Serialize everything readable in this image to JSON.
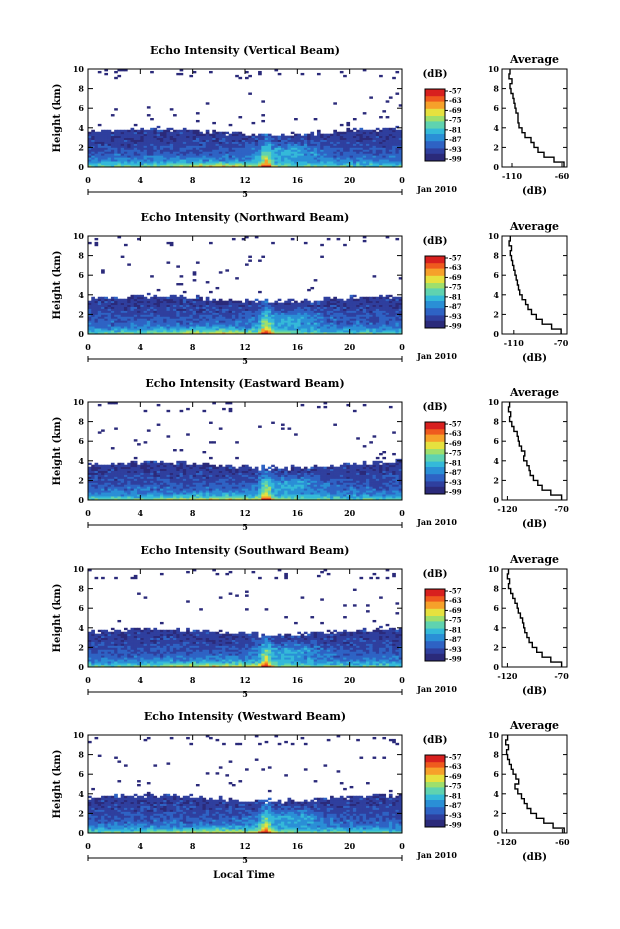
{
  "figure": {
    "x_axis_label": "Local Time",
    "date_label": "Jan 2010",
    "day_label": "5",
    "average_title": "Average",
    "colorbar_unit": "(dB)",
    "average_x_unit": "(dB)",
    "height_axis_label": "Height (km)"
  },
  "chart_data": [
    {
      "type": "heatmap",
      "title": "Echo Intensity (Vertical Beam)",
      "ylabel": "Height (km)",
      "x_ticks": [
        "0",
        "4",
        "8",
        "12",
        "16",
        "20",
        "0"
      ],
      "y_ticks": [
        "0",
        "2",
        "4",
        "6",
        "8",
        "10"
      ],
      "xlim_hours": [
        0,
        24
      ],
      "ylim_km": [
        0,
        10
      ],
      "colorbar": {
        "unit": "(dB)",
        "ticks": [
          "-57",
          "-63",
          "-69",
          "-75",
          "-81",
          "-87",
          "-93",
          "-99"
        ],
        "range": [
          -99,
          -57
        ]
      },
      "average_profile": {
        "title": "Average",
        "xlabel": "(dB)",
        "x_ticks": [
          "-110",
          "-60"
        ],
        "xlim": [
          -120,
          -55
        ],
        "y_ticks": [
          "0",
          "2",
          "4",
          "6",
          "8",
          "10"
        ],
        "height_km": [
          0,
          0.5,
          1,
          1.5,
          2,
          2.5,
          3,
          3.5,
          4,
          4.5,
          5,
          5.5,
          6,
          6.5,
          7,
          7.5,
          8,
          8.5,
          9,
          9.5
        ],
        "avg_db": [
          -58,
          -68,
          -78,
          -84,
          -88,
          -91,
          -97,
          -100,
          -103,
          -104,
          -104,
          -106,
          -107,
          -108,
          -109,
          -111,
          -112,
          -110,
          -113,
          -112
        ]
      }
    },
    {
      "type": "heatmap",
      "title": "Echo Intensity (Northward Beam)",
      "ylabel": "Height (km)",
      "x_ticks": [
        "0",
        "4",
        "8",
        "12",
        "16",
        "20",
        "0"
      ],
      "y_ticks": [
        "0",
        "2",
        "4",
        "6",
        "8",
        "10"
      ],
      "xlim_hours": [
        0,
        24
      ],
      "ylim_km": [
        0,
        10
      ],
      "colorbar": {
        "unit": "(dB)",
        "ticks": [
          "-57",
          "-63",
          "-69",
          "-75",
          "-81",
          "-87",
          "-93",
          "-99"
        ],
        "range": [
          -99,
          -57
        ]
      },
      "average_profile": {
        "title": "Average",
        "xlabel": "(dB)",
        "x_ticks": [
          "-110",
          "-70"
        ],
        "xlim": [
          -120,
          -65
        ],
        "y_ticks": [
          "0",
          "2",
          "4",
          "6",
          "8",
          "10"
        ],
        "height_km": [
          0,
          0.5,
          1,
          1.5,
          2,
          2.5,
          3,
          3.5,
          4,
          4.5,
          5,
          5.5,
          6,
          6.5,
          7,
          7.5,
          8,
          8.5,
          9,
          9.5
        ],
        "avg_db": [
          -70,
          -78,
          -86,
          -91,
          -95,
          -98,
          -100,
          -103,
          -105,
          -106,
          -107,
          -108,
          -109,
          -110,
          -111,
          -112,
          -113,
          -112,
          -114,
          -113
        ]
      }
    },
    {
      "type": "heatmap",
      "title": "Echo Intensity (Eastward Beam)",
      "ylabel": "Height (km)",
      "x_ticks": [
        "0",
        "4",
        "8",
        "12",
        "16",
        "20",
        "0"
      ],
      "y_ticks": [
        "0",
        "2",
        "4",
        "6",
        "8",
        "10"
      ],
      "xlim_hours": [
        0,
        24
      ],
      "ylim_km": [
        0,
        10
      ],
      "colorbar": {
        "unit": "(dB)",
        "ticks": [
          "-57",
          "-63",
          "-69",
          "-75",
          "-81",
          "-87",
          "-93",
          "-99"
        ],
        "range": [
          -99,
          -57
        ]
      },
      "average_profile": {
        "title": "Average",
        "xlabel": "(dB)",
        "x_ticks": [
          "-120",
          "-70"
        ],
        "xlim": [
          -125,
          -65
        ],
        "y_ticks": [
          "0",
          "2",
          "4",
          "6",
          "8",
          "10"
        ],
        "height_km": [
          0,
          0.5,
          1,
          1.5,
          2,
          2.5,
          3,
          3.5,
          4,
          4.5,
          5,
          5.5,
          6,
          6.5,
          7,
          7.5,
          8,
          8.5,
          9,
          9.5
        ],
        "avg_db": [
          -70,
          -80,
          -88,
          -92,
          -96,
          -99,
          -100,
          -102,
          -105,
          -104,
          -107,
          -109,
          -110,
          -111,
          -114,
          -116,
          -118,
          -117,
          -119,
          -118
        ]
      }
    },
    {
      "type": "heatmap",
      "title": "Echo Intensity (Southward Beam)",
      "ylabel": "Height (km)",
      "x_ticks": [
        "0",
        "4",
        "8",
        "12",
        "16",
        "20",
        "0"
      ],
      "y_ticks": [
        "0",
        "2",
        "4",
        "6",
        "8",
        "10"
      ],
      "xlim_hours": [
        0,
        24
      ],
      "ylim_km": [
        0,
        10
      ],
      "colorbar": {
        "unit": "(dB)",
        "ticks": [
          "-57",
          "-63",
          "-69",
          "-75",
          "-81",
          "-87",
          "-93",
          "-99"
        ],
        "range": [
          -99,
          -57
        ]
      },
      "average_profile": {
        "title": "Average",
        "xlabel": "(dB)",
        "x_ticks": [
          "-120",
          "-70"
        ],
        "xlim": [
          -125,
          -65
        ],
        "y_ticks": [
          "0",
          "2",
          "4",
          "6",
          "8",
          "10"
        ],
        "height_km": [
          0,
          0.5,
          1,
          1.5,
          2,
          2.5,
          3,
          3.5,
          4,
          4.5,
          5,
          5.5,
          6,
          6.5,
          7,
          7.5,
          8,
          8.5,
          9,
          9.5
        ],
        "avg_db": [
          -70,
          -80,
          -88,
          -93,
          -97,
          -100,
          -102,
          -104,
          -105,
          -106,
          -108,
          -110,
          -111,
          -113,
          -115,
          -117,
          -119,
          -118,
          -120,
          -119
        ]
      }
    },
    {
      "type": "heatmap",
      "title": "Echo Intensity (Westward Beam)",
      "ylabel": "Height (km)",
      "x_ticks": [
        "0",
        "4",
        "8",
        "12",
        "16",
        "20",
        "0"
      ],
      "y_ticks": [
        "0",
        "2",
        "4",
        "6",
        "8",
        "10"
      ],
      "xlim_hours": [
        0,
        24
      ],
      "ylim_km": [
        0,
        10
      ],
      "colorbar": {
        "unit": "(dB)",
        "ticks": [
          "-57",
          "-63",
          "-69",
          "-75",
          "-81",
          "-87",
          "-93",
          "-99"
        ],
        "range": [
          -99,
          -57
        ]
      },
      "average_profile": {
        "title": "Average",
        "xlabel": "(dB)",
        "x_ticks": [
          "-120",
          "-60"
        ],
        "xlim": [
          -125,
          -55
        ],
        "y_ticks": [
          "0",
          "2",
          "4",
          "6",
          "8",
          "10"
        ],
        "height_km": [
          0,
          0.5,
          1,
          1.5,
          2,
          2.5,
          3,
          3.5,
          4,
          4.5,
          5,
          5.5,
          6,
          6.5,
          7,
          7.5,
          8,
          8.5,
          9,
          9.5
        ],
        "avg_db": [
          -58,
          -70,
          -80,
          -88,
          -94,
          -98,
          -101,
          -104,
          -108,
          -111,
          -107,
          -110,
          -113,
          -115,
          -117,
          -119,
          -120,
          -118,
          -121,
          -119
        ]
      }
    }
  ],
  "colorscale": [
    "#2b2a7a",
    "#2f3f9e",
    "#2e63c4",
    "#2a8fd6",
    "#34b9d9",
    "#5fd3b0",
    "#9fdf6c",
    "#e6e13f",
    "#f6a12a",
    "#ef5a1e",
    "#d8201f"
  ]
}
